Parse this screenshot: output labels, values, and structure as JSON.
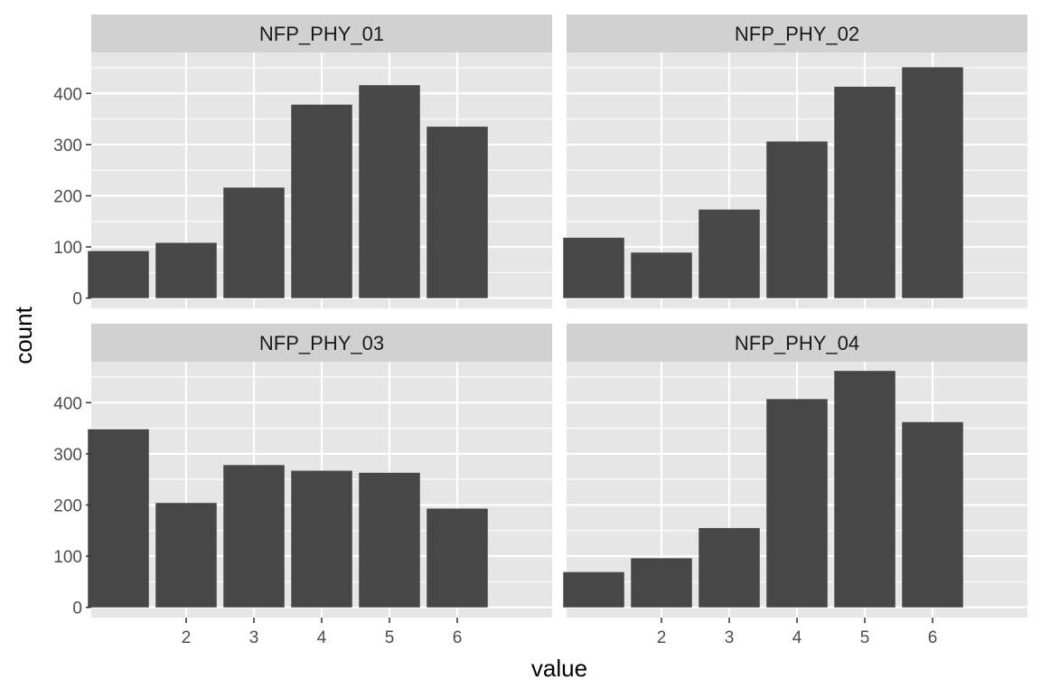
{
  "chart_data": {
    "type": "bar",
    "facet_layout": "2x2",
    "xlabel": "value",
    "ylabel": "count",
    "x_ticks": [
      2,
      3,
      4,
      5,
      6
    ],
    "y_ticks": [
      0,
      100,
      200,
      300,
      400
    ],
    "ylim": [
      -20,
      480
    ],
    "xlim": [
      0.6,
      7.4
    ],
    "grid": true,
    "colors": {
      "bar": "#474747",
      "panel_bg": "#e6e6e6",
      "strip_bg": "#d1d1d1",
      "grid": "#ffffff",
      "text": "#4d4d4d",
      "title_text": "#1a1a1a"
    },
    "panels": [
      {
        "title": "NFP_PHY_01",
        "x": [
          1,
          2,
          3,
          4,
          5,
          6,
          7
        ],
        "values": [
          92,
          108,
          216,
          378,
          416,
          335,
          0
        ]
      },
      {
        "title": "NFP_PHY_02",
        "x": [
          1,
          2,
          3,
          4,
          5,
          6,
          7
        ],
        "values": [
          118,
          89,
          173,
          306,
          413,
          451,
          0
        ]
      },
      {
        "title": "NFP_PHY_03",
        "x": [
          1,
          2,
          3,
          4,
          5,
          6,
          7
        ],
        "values": [
          348,
          204,
          278,
          267,
          263,
          193,
          0
        ]
      },
      {
        "title": "NFP_PHY_04",
        "x": [
          1,
          2,
          3,
          4,
          5,
          6,
          7
        ],
        "values": [
          69,
          96,
          155,
          407,
          462,
          362,
          0
        ]
      }
    ]
  }
}
